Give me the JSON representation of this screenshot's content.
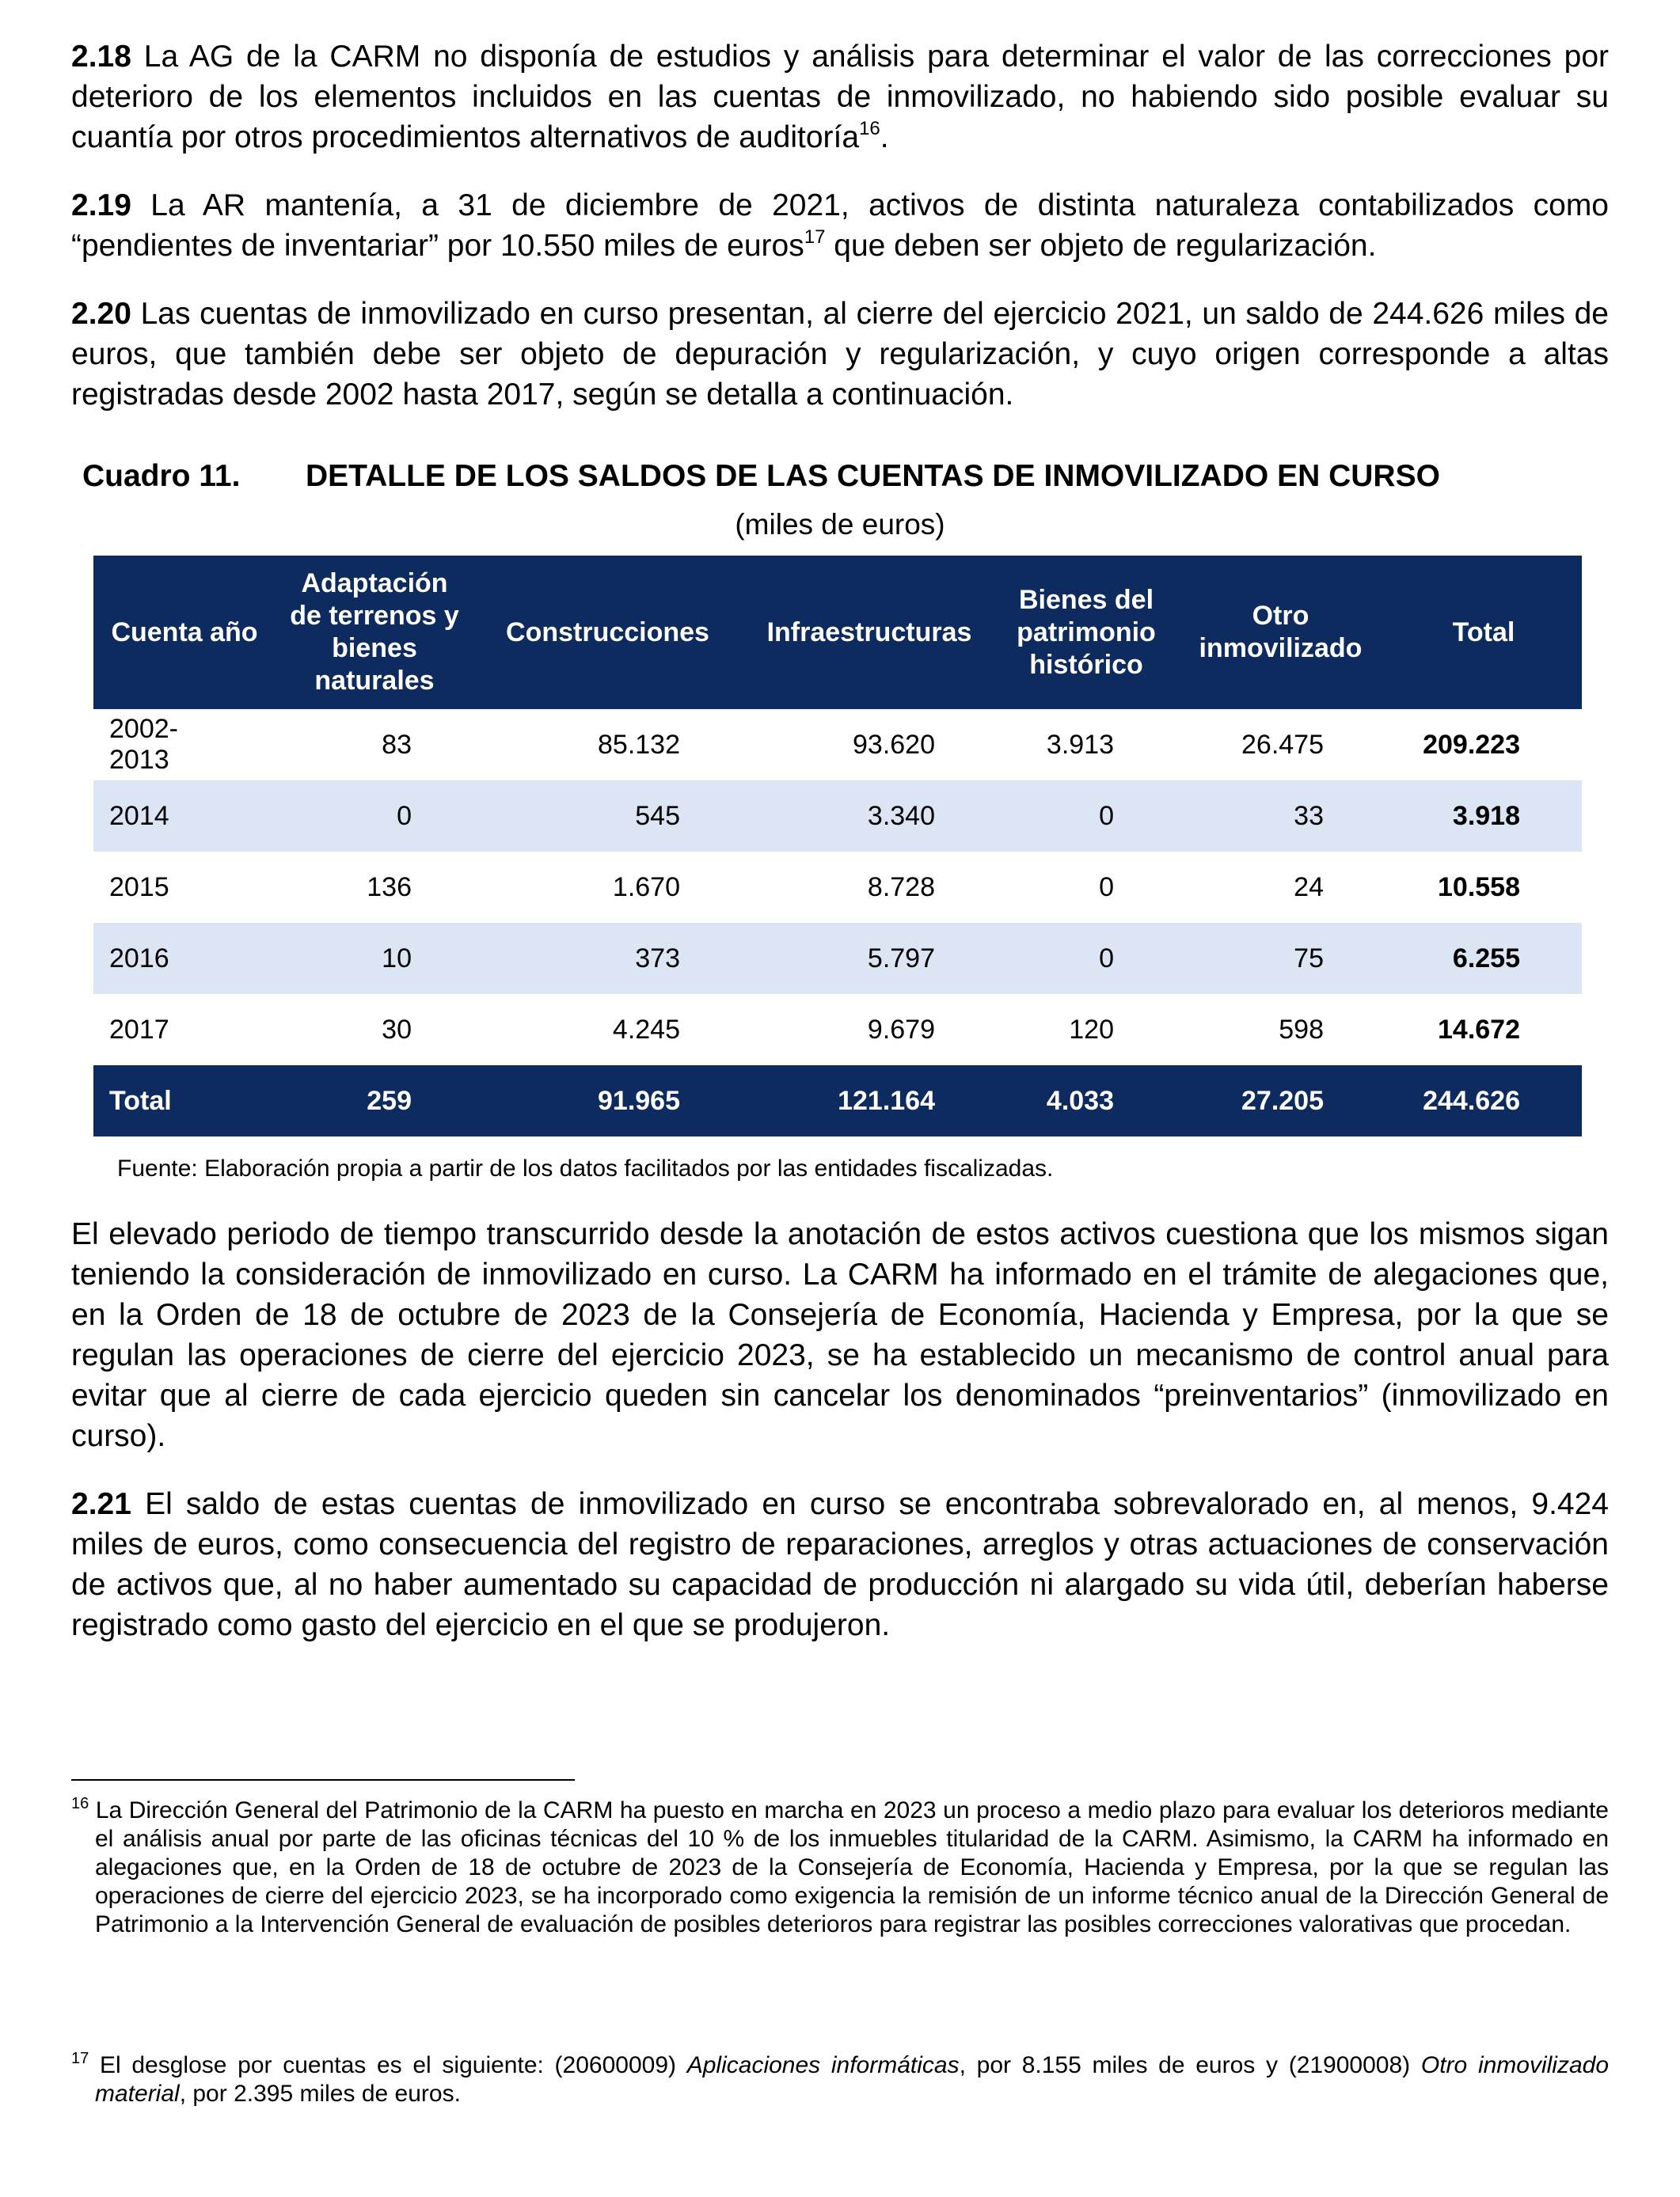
{
  "paragraphs": [
    {
      "number": "2.18",
      "text": "La AG de la CARM no disponía de estudios y análisis para determinar el valor de las correcciones por deterioro de los elementos incluidos en las cuentas de inmovilizado, no habiendo sido posible evaluar su cuantía por otros procedimientos alternativos de auditoría",
      "ref": "16",
      "tail": "."
    },
    {
      "number": "2.19",
      "text": "La AR mantenía, a 31 de diciembre de 2021, activos de distinta naturaleza contabilizados como “pendientes de inventariar” por 10.550 miles de euros",
      "ref": "17",
      "tail": "que deben ser objeto de regularización."
    },
    {
      "number": "2.20",
      "text": "Las cuentas de inmovilizado en curso presentan, al cierre del ejercicio 2021, un saldo de 244.626 miles de euros, que también debe ser objeto de depuración y regularización, y cuyo origen corresponde a altas registradas desde 2002 hasta 2017, según se detalla a continuación."
    }
  ],
  "table": {
    "label": "Cuadro 11.",
    "title": "DETALLE DE LOS SALDOS DE LAS CUENTAS DE INMOVILIZADO EN CURSO",
    "unit": "(miles de euros)",
    "headers": [
      "Cuenta año",
      "Adaptación de terrenos y bienes naturales",
      "Construcciones",
      "Infraestructuras",
      "Bienes del patrimonio histórico",
      "Otro inmovilizado",
      "Total"
    ],
    "rows": [
      [
        "2002-2013",
        "83",
        "85.132",
        "93.620",
        "3.913",
        "26.475",
        "209.223"
      ],
      [
        "2014",
        "0",
        "545",
        "3.340",
        "0",
        "33",
        "3.918"
      ],
      [
        "2015",
        "136",
        "1.670",
        "8.728",
        "0",
        "24",
        "10.558"
      ],
      [
        "2016",
        "10",
        "373",
        "5.797",
        "0",
        "75",
        "6.255"
      ],
      [
        "2017",
        "30",
        "4.245",
        "9.679",
        "120",
        "598",
        "14.672"
      ]
    ],
    "total": [
      "Total",
      "259",
      "91.965",
      "121.164",
      "4.033",
      "27.205",
      "244.626"
    ],
    "source": "Fuente: Elaboración propia a partir de los datos facilitados por las entidades fiscalizadas."
  },
  "after_table": "El elevado periodo de tiempo transcurrido desde la anotación de estos activos cuestiona que los mismos sigan teniendo la consideración de inmovilizado en curso. La CARM ha informado en el trámite de alegaciones que, en la Orden de 18 de octubre de 2023 de la Consejería de Economía, Hacienda y Empresa, por la que se regulan las operaciones de cierre del ejercicio 2023, se ha establecido un mecanismo de control anual para evitar que al cierre de cada ejercicio queden sin cancelar los denominados “preinventarios” (inmovilizado en curso).",
  "paragraph_221": {
    "number": "2.21",
    "text": "El saldo de estas cuentas de inmovilizado en curso se encontraba sobrevalorado en, al menos, 9.424 miles de euros, como consecuencia del registro de reparaciones, arreglos y otras actuaciones de conservación de activos que, al no haber aumentado su capacidad de producción ni alargado su vida útil, deberían haberse registrado como gasto del ejercicio en el que se produjeron."
  },
  "footnotes": [
    {
      "number": "16",
      "parts": [
        "La Dirección General del Patrimonio de la CARM ha puesto en marcha en 2023 un proceso a medio plazo para evaluar los deterioros mediante el análisis anual por parte de las oficinas técnicas del 10 % de los inmuebles titularidad de la CARM. Asimismo, la CARM ha informado en alegaciones que, en la Orden de 18 de octubre de 2023 de la Consejería de Economía, Hacienda y Empresa, por la que se regulan las operaciones de cierre del ejercicio 2023, se ha incorporado como exigencia la remisión de un informe técnico anual de la Dirección General de Patrimonio a la Intervención General de evaluación de posibles deterioros para registrar las posibles correcciones valorativas que procedan."
      ]
    },
    {
      "number": "17",
      "parts": [
        "El desglose por cuentas es el siguiente: (20600009)",
        "Aplicaciones informáticas",
        ", por 8.155 miles de euros y (21900008)",
        "Otro inmovilizado material",
        ", por 2.395 miles de euros."
      ]
    }
  ]
}
